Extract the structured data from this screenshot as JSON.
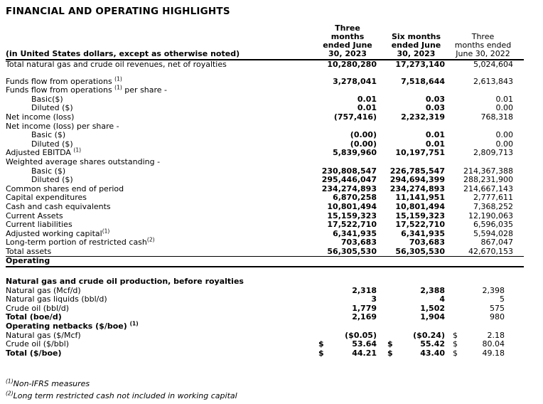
{
  "page": {
    "title": "FINANCIAL AND OPERATING HIGHLIGHTS",
    "background_color": "#ffffff",
    "text_color": "#000000"
  },
  "table": {
    "column_headers": {
      "label": "(in United States dollars, except as otherwise noted)",
      "col1": "Three\nmonths\nended June\n30, 2023",
      "col2": "Six months\nended June\n30, 2023",
      "col3": "Three\nmonths ended\nJune 30, 2022"
    },
    "rows": [
      {
        "label": "Total natural gas and crude oil revenues, net of royalties",
        "v1": "10,280,280",
        "v2": "17,273,140",
        "v3": "5,024,604"
      },
      {
        "type": "spacer",
        "h": 11
      },
      {
        "label": "Funds flow from operations ",
        "sup": "(1)",
        "v1": "3,278,041",
        "v2": "7,518,644",
        "v3": "2,613,843"
      },
      {
        "label": "Funds flow from operations ",
        "sup": "(1)",
        "label2": " per share -"
      },
      {
        "label": "Basic($)",
        "indent": true,
        "v1": "0.01",
        "v2": "0.03",
        "v3": "0.01"
      },
      {
        "label": "Diluted ($)",
        "indent": true,
        "v1": "0.01",
        "v2": "0.03",
        "v3": "0.00"
      },
      {
        "label": "Net income (loss)",
        "v1": "(757,416)",
        "v2": "2,232,319",
        "v3": "768,318"
      },
      {
        "label": "Net income (loss) per share -"
      },
      {
        "label": "Basic ($)",
        "indent": true,
        "v1": "(0.00)",
        "v2": "0.01",
        "v3": "0.00"
      },
      {
        "label": "Diluted ($)",
        "indent": true,
        "v1": "(0.00)",
        "v2": "0.01",
        "v3": "0.00"
      },
      {
        "label": "Adjusted EBITDA ",
        "sup": "(1)",
        "v1": "5,839,960",
        "v2": "10,197,751",
        "v3": "2,809,713"
      },
      {
        "label": "Weighted average shares outstanding -"
      },
      {
        "label": "Basic ($)",
        "indent": true,
        "v1": "230,808,547",
        "v2": "226,785,547",
        "v3": "214,367,388"
      },
      {
        "label": "Diluted ($)",
        "indent": true,
        "v1": "295,446,047",
        "v2": "294,694,399",
        "v3": "288,231,900"
      },
      {
        "label": "Common shares end of period",
        "v1": "234,274,893",
        "v2": "234,274,893",
        "v3": "214,667,143"
      },
      {
        "label": "Capital expenditures",
        "v1": "6,870,258",
        "v2": "11,141,951",
        "v3": "2,777,611"
      },
      {
        "label": "Cash and cash equivalents",
        "v1": "10,801,494",
        "v2": "10,801,494",
        "v3": "7,368,252"
      },
      {
        "label": "Current Assets",
        "v1": "15,159,323",
        "v2": "15,159,323",
        "v3": "12,190,063"
      },
      {
        "label": "Current liabilities",
        "v1": "17,522,710",
        "v2": "17,522,710",
        "v3": "6,596,035"
      },
      {
        "label": "Adjusted working capital",
        "sup": "(1)",
        "v1": "6,341,935",
        "v2": "6,341,935",
        "v3": "5,594,028"
      },
      {
        "label": "Long-term portion of restricted cash",
        "sup": "(2)",
        "v1": "703,683",
        "v2": "703,683",
        "v3": "867,047"
      },
      {
        "label": "Total assets",
        "v1": "56,305,530",
        "v2": "56,305,530",
        "v3": "42,670,153",
        "rule": "thin"
      },
      {
        "label": "Operating",
        "bold": true,
        "section": true,
        "rule": "thick"
      },
      {
        "type": "spacer",
        "h": 14
      },
      {
        "label": "Natural gas and crude oil production, before royalties",
        "bold": true,
        "section": true
      },
      {
        "label": "Natural gas (Mcf/d)",
        "op": true,
        "v1": "2,318",
        "v2": "2,388",
        "v3": "2,398"
      },
      {
        "label": "Natural gas liquids (bbl/d)",
        "op": true,
        "v1": "3",
        "v2": "4",
        "v3": "5"
      },
      {
        "label": "Crude oil (bbl/d)",
        "op": true,
        "v1": "1,779",
        "v2": "1,502",
        "v3": "575"
      },
      {
        "label": "Total (boe/d)",
        "bold": true,
        "op": true,
        "v1": "2,169",
        "v2": "1,904",
        "v3": "980"
      },
      {
        "label": "Operating netbacks ($/boe) ",
        "sup": "(1)",
        "bold": true,
        "section": true
      },
      {
        "label": "Natural gas ($/Mcf)",
        "op": true,
        "v1": "($0.05)",
        "v2": "($0.24)",
        "p3": "$",
        "v3": "2.18"
      },
      {
        "label": "Crude oil ($/bbl)",
        "op": true,
        "p1": "$",
        "v1": "53.64",
        "p2": "$",
        "v2": "55.42",
        "p3": "$",
        "v3": "80.04"
      },
      {
        "label": "Total ($/boe)",
        "bold": true,
        "op": true,
        "p1": "$",
        "v1": "44.21",
        "p2": "$",
        "v2": "43.40",
        "p3": "$",
        "v3": "49.18"
      }
    ]
  },
  "footnotes": [
    {
      "sup": "(1)",
      "text": "Non-IFRS measures"
    },
    {
      "sup": "(2)",
      "text": "Long term restricted cash not included in working capital"
    }
  ]
}
